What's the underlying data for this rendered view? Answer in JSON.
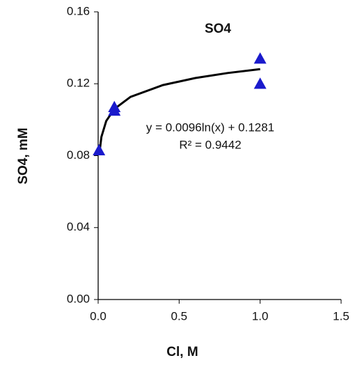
{
  "chart_data": {
    "type": "scatter",
    "title": "SO4",
    "x_label": "Cl, M",
    "y_label": "SO4, mM",
    "xlim": [
      0,
      1.5
    ],
    "ylim": [
      0,
      0.16
    ],
    "xticks": [
      {
        "value": 0,
        "label": "0.0"
      },
      0.5,
      {
        "value": 1,
        "label": "1.0"
      },
      1.5
    ],
    "yticks": [
      {
        "value": 0,
        "label": "0.00"
      },
      0.04,
      0.08,
      0.12,
      0.16
    ],
    "points": {
      "color": "#1a1acc",
      "x": [
        0.005,
        0.1,
        0.1,
        1,
        1
      ],
      "values": [
        0.083,
        0.107,
        0.105,
        0.134,
        0.12
      ]
    },
    "trendline": {
      "color": "#000000",
      "x": [
        0.008,
        0.02,
        0.05,
        0.1,
        0.2,
        0.4,
        0.6,
        0.8,
        1
      ],
      "values": [
        0.0818,
        0.0905,
        0.0993,
        0.106,
        0.1127,
        0.1193,
        0.1232,
        0.126,
        0.1281
      ]
    },
    "annotations": [
      "y = 0.0096ln(x) + 0.1281",
      "R² = 0.9442"
    ]
  }
}
